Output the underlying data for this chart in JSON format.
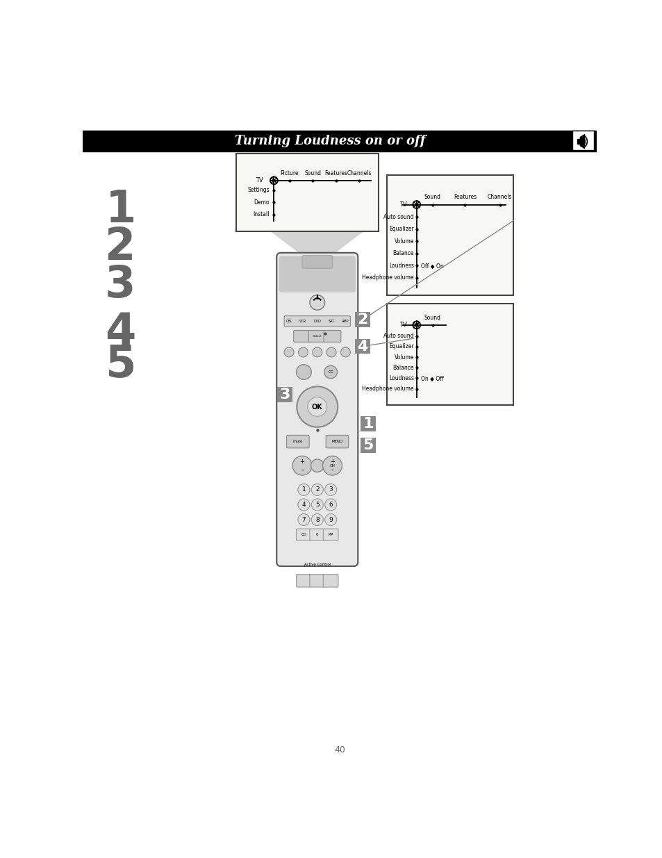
{
  "title": "Turning Loudness on or off",
  "title_bg": "#000000",
  "title_color": "#ffffff",
  "title_fontsize": 13,
  "page_bg": "#ffffff",
  "step_numbers": [
    "1",
    "2",
    "3",
    "4",
    "5"
  ],
  "step_color": "#666666",
  "menu1_title_items": [
    "Picture",
    "Sound",
    "Features",
    "Channels"
  ],
  "menu1_sub": [
    "Settings",
    "Demo",
    "Install"
  ],
  "menu2_items": [
    "Auto sound",
    "Equalizer",
    "Volume",
    "Balance",
    "Loudness",
    "Headphone volume"
  ],
  "menu2_headers": [
    "Sound",
    "Features",
    "Channels"
  ],
  "menu2_loudness_detail": "Off ◆ On",
  "menu3_items": [
    "Auto sound",
    "Equalizer",
    "Volume",
    "Balance",
    "Loudness",
    "Headphone volume"
  ],
  "menu3_header": "Sound",
  "menu3_loudness_detail": "On ◆ Off",
  "remote_color": "#e8e8e8",
  "remote_dark": "#c8c8c8",
  "remote_edge": "#555555"
}
